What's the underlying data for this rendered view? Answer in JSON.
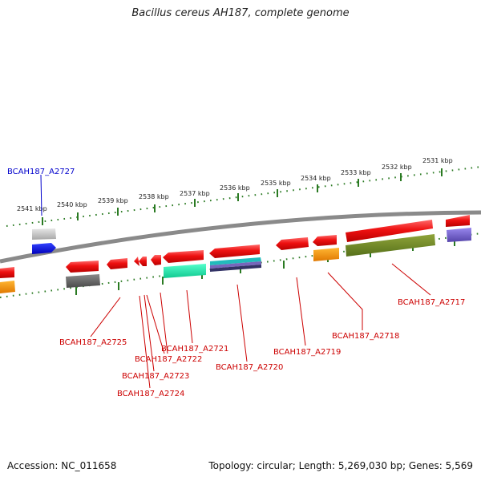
{
  "title": "Bacillus cereus AH187, complete genome",
  "footer": {
    "accession": "Accession: NC_011658",
    "summary": "Topology: circular; Length: 5,269,030 bp; Genes: 5,569"
  },
  "colors": {
    "gene_red": "#ee1111",
    "highlight_blue": "#0000cc",
    "tick_green": "#2a7a22",
    "backbone": "#8a8a8a",
    "label_red": "#cc0000"
  },
  "scale_labels": [
    "2541 kbp",
    "2540 kbp",
    "2539 kbp",
    "2538 kbp",
    "2537 kbp",
    "2536 kbp",
    "2535 kbp",
    "2534 kbp",
    "2533 kbp",
    "2532 kbp",
    "2531 kbp"
  ],
  "gene_labels": [
    "BCAH187_A2727",
    "BCAH187_A2725",
    "BCAH187_A2724",
    "BCAH187_A2723",
    "BCAH187_A2722",
    "BCAH187_A2721",
    "BCAH187_A2720",
    "BCAH187_A2719",
    "BCAH187_A2718",
    "BCAH187_A2717"
  ]
}
